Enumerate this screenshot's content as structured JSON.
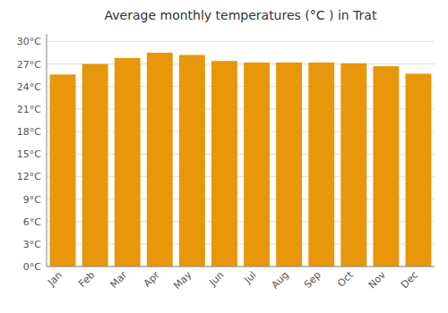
{
  "chart_data": {
    "type": "bar",
    "title": "Average monthly temperatures (°C ) in Trat",
    "categories": [
      "Jan",
      "Feb",
      "Mar",
      "Apr",
      "May",
      "Jun",
      "Jul",
      "Aug",
      "Sep",
      "Oct",
      "Nov",
      "Dec"
    ],
    "values": [
      25.6,
      27.0,
      27.8,
      28.5,
      28.2,
      27.4,
      27.2,
      27.2,
      27.2,
      27.1,
      26.7,
      25.7
    ],
    "color": "#E8960A",
    "ylim": [
      0,
      31
    ],
    "yticks": [
      {
        "value": 0,
        "label": "0°C"
      },
      {
        "value": 3,
        "label": "3°C"
      },
      {
        "value": 6,
        "label": "6°C"
      },
      {
        "value": 9,
        "label": "9°C"
      },
      {
        "value": 12,
        "label": "12°C"
      },
      {
        "value": 15,
        "label": "15°C"
      },
      {
        "value": 18,
        "label": "18°C"
      },
      {
        "value": 21,
        "label": "21°C"
      },
      {
        "value": 24,
        "label": "24°C"
      },
      {
        "value": 27,
        "label": "27°C"
      },
      {
        "value": 30,
        "label": "30°C"
      }
    ],
    "grid": true
  }
}
